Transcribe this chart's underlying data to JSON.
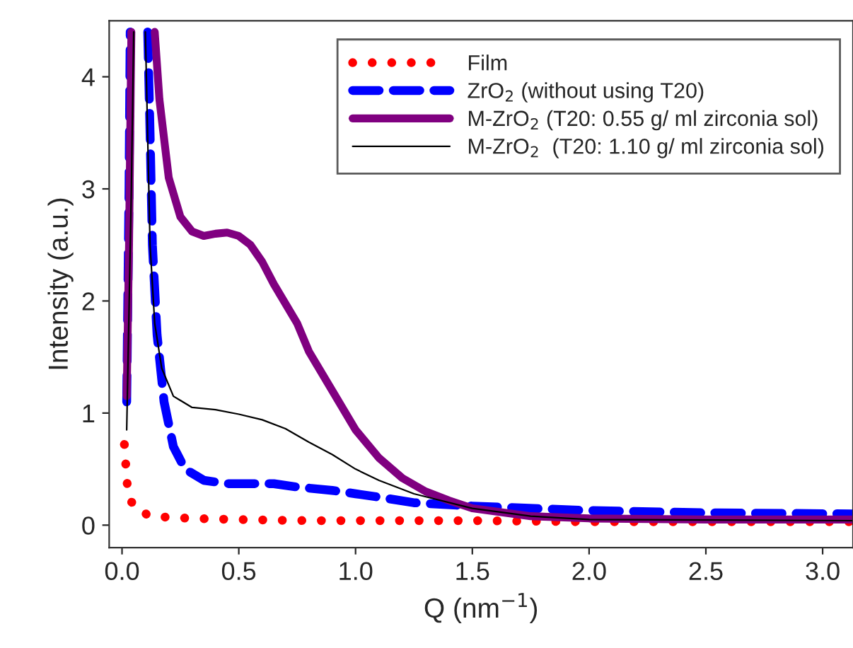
{
  "chart_data": {
    "type": "line",
    "xlabel": "Q (nm$^{−1}$)",
    "ylabel": "Intensity (a.u.)",
    "xlim": [
      -0.055,
      3.13
    ],
    "ylim": [
      -0.2,
      4.5
    ],
    "xticks": [
      {
        "value": 0,
        "label": "0.0"
      },
      {
        "value": 0.5,
        "label": "0.5"
      },
      {
        "value": 1,
        "label": "1.0"
      },
      {
        "value": 1.5,
        "label": "1.5"
      },
      {
        "value": 2,
        "label": "2.0"
      },
      {
        "value": 2.5,
        "label": "2.5"
      },
      {
        "value": 3,
        "label": "3.0"
      }
    ],
    "yticks": [
      0,
      1,
      2,
      3,
      4
    ],
    "grid": false,
    "legend": "top right",
    "series": [
      {
        "name": "Film",
        "color": "#ff0000",
        "line_style": "dotted",
        "x": [
          0.01,
          0.015,
          0.02,
          0.025,
          0.05,
          0.12,
          0.2,
          0.3,
          0.5,
          0.8,
          1.0,
          1.5,
          2.0,
          2.5,
          3.13
        ],
        "values": [
          0.72,
          0.57,
          0.43,
          0.29,
          0.16,
          0.08,
          0.07,
          0.06,
          0.05,
          0.04,
          0.04,
          0.04,
          0.03,
          0.03,
          0.03
        ]
      },
      {
        "name": "ZrO$_{2}$ (without using T20)",
        "color": "#0000ff",
        "line_style": "dashed",
        "x": [
          0.02,
          0.03,
          0.035,
          0.07,
          0.11,
          0.12,
          0.13,
          0.15,
          0.18,
          0.22,
          0.27,
          0.35,
          0.45,
          0.55,
          0.65,
          0.75,
          0.9,
          1.0,
          1.1,
          1.25,
          1.5,
          2.0,
          2.5,
          3.13
        ],
        "values": [
          1.1,
          3.0,
          4.4,
          null,
          4.4,
          3.5,
          2.5,
          1.7,
          1.1,
          0.7,
          0.5,
          0.4,
          0.37,
          0.37,
          0.37,
          0.34,
          0.31,
          0.28,
          0.25,
          0.2,
          0.17,
          0.13,
          0.11,
          0.1
        ]
      },
      {
        "name": "M-ZrO$_{2}$ (T20: 0.55 g/ ml zirconia sol)",
        "color": "#800080",
        "line_style": "solid",
        "x": [
          0.02,
          0.03,
          0.04,
          0.09,
          0.14,
          0.16,
          0.2,
          0.25,
          0.3,
          0.35,
          0.4,
          0.45,
          0.5,
          0.55,
          0.6,
          0.65,
          0.75,
          0.8,
          0.9,
          1.0,
          1.1,
          1.2,
          1.3,
          1.4,
          1.5,
          1.75,
          2.0,
          2.5,
          3.13
        ],
        "values": [
          1.15,
          2.5,
          4.4,
          null,
          4.4,
          3.8,
          3.1,
          2.75,
          2.62,
          2.58,
          2.6,
          2.61,
          2.58,
          2.5,
          2.35,
          2.15,
          1.8,
          1.55,
          1.2,
          0.85,
          0.6,
          0.42,
          0.3,
          0.22,
          0.15,
          0.08,
          0.06,
          0.05,
          0.05
        ]
      },
      {
        "name": "M-ZrO$_{2}$  (T20: 1.10 g/ ml zirconia sol)",
        "color": "#000000",
        "line_style": "solid",
        "x": [
          0.02,
          0.04,
          0.05,
          0.07,
          0.1,
          0.12,
          0.14,
          0.17,
          0.22,
          0.3,
          0.4,
          0.5,
          0.6,
          0.7,
          0.8,
          0.9,
          1.0,
          1.1,
          1.25,
          1.5,
          1.75,
          2.0,
          3.13
        ],
        "values": [
          0.85,
          3.0,
          4.4,
          null,
          4.4,
          2.5,
          1.8,
          1.4,
          1.15,
          1.05,
          1.03,
          0.99,
          0.94,
          0.86,
          0.74,
          0.63,
          0.5,
          0.4,
          0.28,
          0.15,
          0.08,
          0.05,
          0.04
        ]
      }
    ]
  }
}
